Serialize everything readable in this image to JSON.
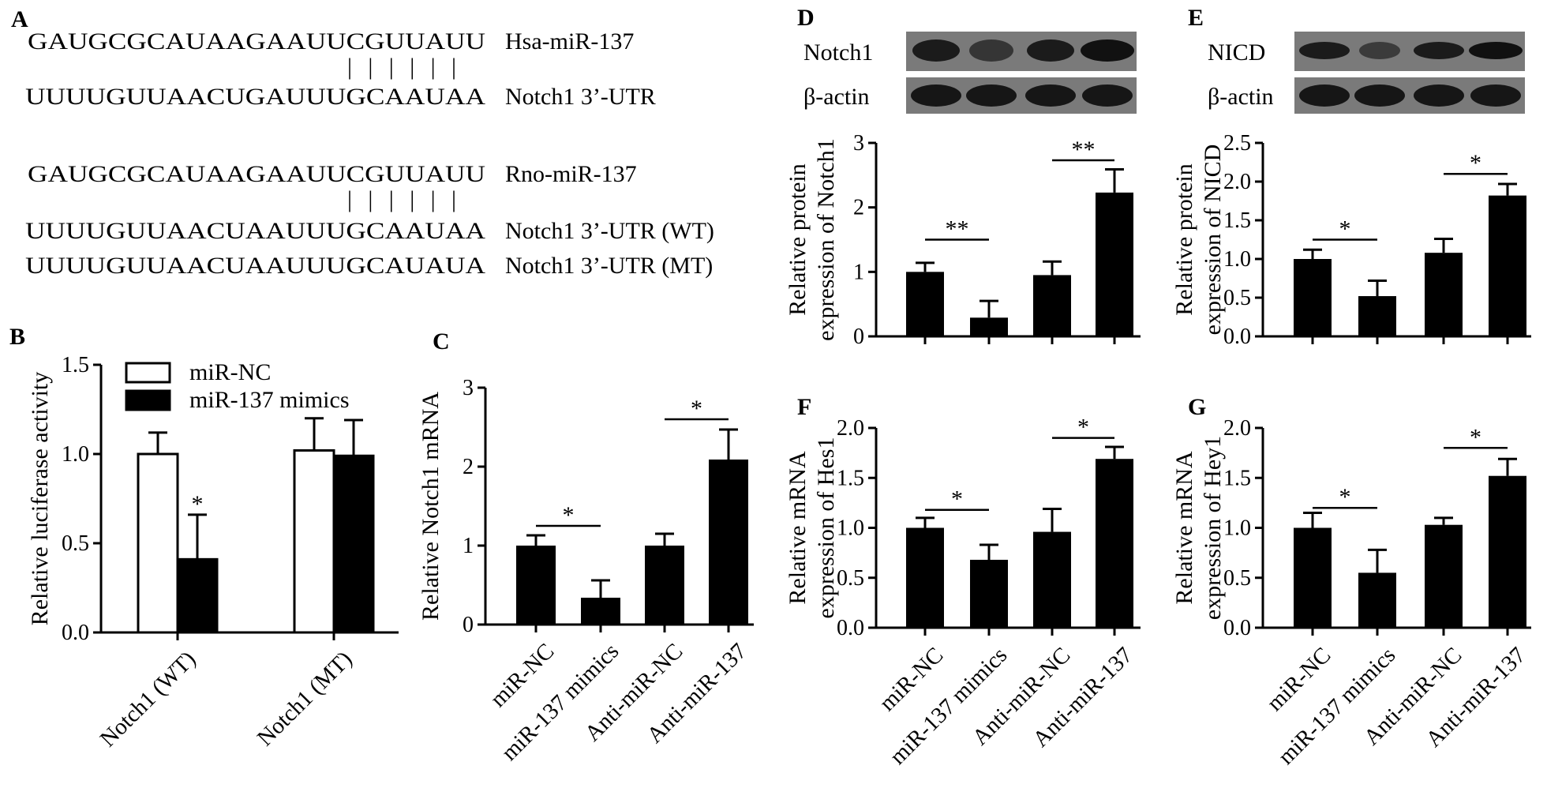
{
  "panels": {
    "A": "A",
    "B": "B",
    "C": "C",
    "D": "D",
    "E": "E",
    "F": "F",
    "G": "G"
  },
  "sequences": {
    "rows": [
      {
        "seq": "GAUGCGCAUAAGAAUUCGUUAUU",
        "label": "Hsa-miR-137"
      },
      {
        "seq": "UUUUGUUAACUGAUUUGCAAUAA",
        "label": "Notch1 3’-UTR"
      },
      {
        "seq": "GAUGCGCAUAAGAAUUCGUUAUU",
        "label": "Rno-miR-137"
      },
      {
        "seq": "UUUUGUUAACUAAUUUGCAAUAA",
        "label": "Notch1 3’-UTR (WT)"
      },
      {
        "seq": "UUUUGUUAACUAAUUUGCAUAUA",
        "label": "Notch1 3’-UTR (MT)"
      }
    ],
    "pairing_marks": "| | | | | |"
  },
  "blots": {
    "D": {
      "target": "Notch1",
      "control": "β-actin"
    },
    "E": {
      "target": "NICD",
      "control": "β-actin"
    }
  },
  "colors": {
    "filled_bar": "#000000",
    "open_bar": "#ffffff",
    "blot_bg": "#7a7a7a",
    "band": "#111111"
  },
  "chart_data": [
    {
      "id": "B",
      "type": "bar",
      "categories": [
        "Notch1 (WT)",
        "Notch1 (MT)"
      ],
      "series": [
        {
          "name": "miR-NC",
          "values": [
            1.0,
            1.02
          ],
          "errors": [
            0.12,
            0.18
          ],
          "fill": "#ffffff"
        },
        {
          "name": "miR-137 mimics",
          "values": [
            0.41,
            0.99
          ],
          "errors": [
            0.25,
            0.2
          ],
          "fill": "#000000"
        }
      ],
      "ylabel": "Relative luciferase activity",
      "ylim": [
        0,
        1.5
      ],
      "yticks": [
        "0.0",
        "0.5",
        "1.0",
        "1.5"
      ],
      "significance": [
        {
          "type": "star",
          "text": "*",
          "category": 0,
          "series": 1
        }
      ],
      "legend": "top-left"
    },
    {
      "id": "C",
      "type": "bar",
      "categories": [
        "miR-NC",
        "miR-137 mimics",
        "Anti-miR-NC",
        "Anti-miR-137"
      ],
      "values": [
        1.0,
        0.34,
        1.0,
        2.09
      ],
      "errors": [
        0.13,
        0.22,
        0.15,
        0.38
      ],
      "ylabel": "Relative Notch1 mRNA",
      "ylim": [
        0,
        3
      ],
      "yticks": [
        "0",
        "1",
        "2",
        "3"
      ],
      "brackets": [
        {
          "from": 0,
          "to": 1,
          "y": 1.25,
          "text": "*"
        },
        {
          "from": 2,
          "to": 3,
          "y": 2.6,
          "text": "*"
        }
      ]
    },
    {
      "id": "D",
      "type": "bar",
      "categories": [
        "miR-NC",
        "miR-137 mimics",
        "Anti-miR-NC",
        "Anti-miR-137"
      ],
      "values": [
        1.0,
        0.29,
        0.95,
        2.23
      ],
      "errors": [
        0.14,
        0.26,
        0.21,
        0.36
      ],
      "ylabel": [
        "Relative  protein",
        "expression of Notch1"
      ],
      "ylim": [
        0,
        3
      ],
      "yticks": [
        "0",
        "1",
        "2",
        "3"
      ],
      "brackets": [
        {
          "from": 0,
          "to": 1,
          "y": 1.5,
          "text": "**"
        },
        {
          "from": 2,
          "to": 3,
          "y": 2.73,
          "text": "**"
        }
      ]
    },
    {
      "id": "E",
      "type": "bar",
      "categories": [
        "miR-NC",
        "miR-137 mimics",
        "Anti-miR-NC",
        "Anti-miR-137"
      ],
      "values": [
        1.0,
        0.52,
        1.08,
        1.82
      ],
      "errors": [
        0.12,
        0.2,
        0.18,
        0.15
      ],
      "ylabel": [
        "Relative  protein",
        "expression of NICD"
      ],
      "ylim": [
        0,
        2.5
      ],
      "yticks": [
        "0.0",
        "0.5",
        "1.0",
        "1.5",
        "2.0",
        "2.5"
      ],
      "brackets": [
        {
          "from": 0,
          "to": 1,
          "y": 1.25,
          "text": "*"
        },
        {
          "from": 2,
          "to": 3,
          "y": 2.1,
          "text": "*"
        }
      ]
    },
    {
      "id": "F",
      "type": "bar",
      "categories": [
        "miR-NC",
        "miR-137 mimics",
        "Anti-miR-NC",
        "Anti-miR-137"
      ],
      "values": [
        1.0,
        0.68,
        0.96,
        1.69
      ],
      "errors": [
        0.1,
        0.15,
        0.23,
        0.12
      ],
      "ylabel": [
        "Relative  mRNA",
        "expression of Hes1"
      ],
      "ylim": [
        0,
        2
      ],
      "yticks": [
        "0.0",
        "0.5",
        "1.0",
        "1.5",
        "2.0"
      ],
      "brackets": [
        {
          "from": 0,
          "to": 1,
          "y": 1.18,
          "text": "*"
        },
        {
          "from": 2,
          "to": 3,
          "y": 1.9,
          "text": "*"
        }
      ]
    },
    {
      "id": "G",
      "type": "bar",
      "categories": [
        "miR-NC",
        "miR-137 mimics",
        "Anti-miR-NC",
        "Anti-miR-137"
      ],
      "values": [
        1.0,
        0.55,
        1.03,
        1.52
      ],
      "errors": [
        0.15,
        0.23,
        0.07,
        0.17
      ],
      "ylabel": [
        "Relative  mRNA",
        "expression of Hey1"
      ],
      "ylim": [
        0,
        2
      ],
      "yticks": [
        "0.0",
        "0.5",
        "1.0",
        "1.5",
        "2.0"
      ],
      "brackets": [
        {
          "from": 0,
          "to": 1,
          "y": 1.2,
          "text": "*"
        },
        {
          "from": 2,
          "to": 3,
          "y": 1.8,
          "text": "*"
        }
      ]
    }
  ]
}
